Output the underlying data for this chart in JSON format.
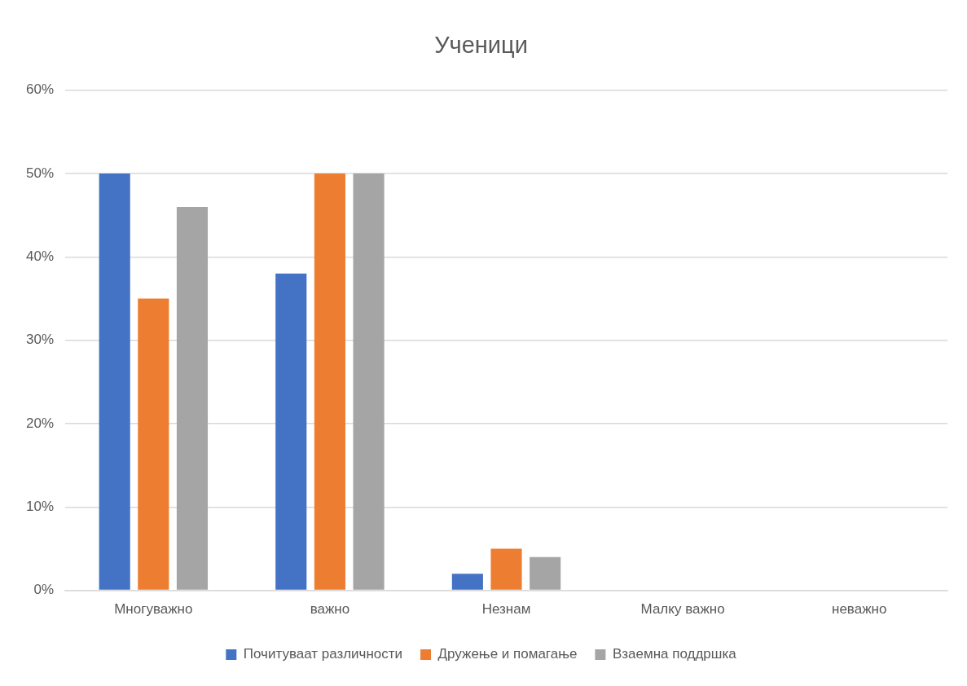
{
  "chart_data": {
    "type": "bar",
    "title": "Ученици",
    "categories": [
      "Многуважно",
      "важно",
      "Незнам",
      "Малку важно",
      "неважно"
    ],
    "series": [
      {
        "name": "Почитуваат различности",
        "color": "#4472c4",
        "values": [
          50,
          38,
          2,
          0,
          0
        ]
      },
      {
        "name": "Дружење и помагање",
        "color": "#ed7d31",
        "values": [
          35,
          50,
          5,
          0,
          0
        ]
      },
      {
        "name": "Взаемна поддршка",
        "color": "#a5a5a5",
        "values": [
          46,
          50,
          4,
          0,
          0
        ]
      }
    ],
    "ylim": [
      0,
      60
    ],
    "yticks": [
      {
        "value": 0,
        "label": "0%"
      },
      {
        "value": 10,
        "label": "10%"
      },
      {
        "value": 20,
        "label": "20%"
      },
      {
        "value": 30,
        "label": "30%"
      },
      {
        "value": 40,
        "label": "40%"
      },
      {
        "value": 50,
        "label": "50%"
      },
      {
        "value": 60,
        "label": "60%"
      }
    ],
    "grid": "y",
    "legend": "bottom"
  }
}
